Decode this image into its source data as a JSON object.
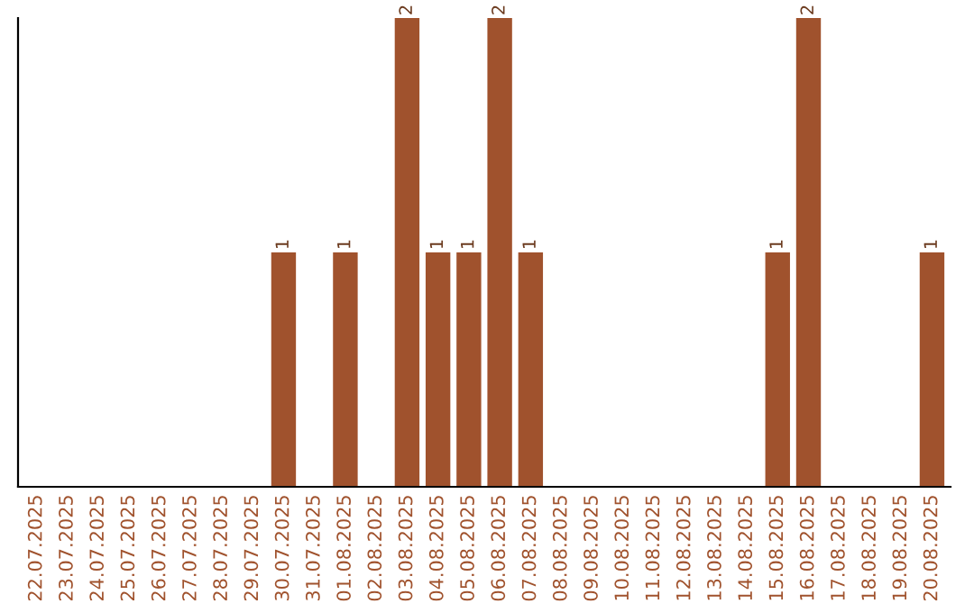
{
  "chart_data": {
    "type": "bar",
    "categories": [
      "22.07.2025",
      "23.07.2025",
      "24.07.2025",
      "25.07.2025",
      "26.07.2025",
      "27.07.2025",
      "28.07.2025",
      "29.07.2025",
      "30.07.2025",
      "31.07.2025",
      "01.08.2025",
      "02.08.2025",
      "03.08.2025",
      "04.08.2025",
      "05.08.2025",
      "06.08.2025",
      "07.08.2025",
      "08.08.2025",
      "09.08.2025",
      "10.08.2025",
      "11.08.2025",
      "12.08.2025",
      "13.08.2025",
      "14.08.2025",
      "15.08.2025",
      "16.08.2025",
      "17.08.2025",
      "18.08.2025",
      "19.08.2025",
      "20.08.2025"
    ],
    "values": [
      0,
      0,
      0,
      0,
      0,
      0,
      0,
      0,
      1,
      0,
      1,
      0,
      2,
      1,
      1,
      2,
      1,
      0,
      0,
      0,
      0,
      0,
      0,
      0,
      1,
      2,
      0,
      0,
      0,
      1
    ],
    "value_labels": [
      null,
      null,
      null,
      null,
      null,
      null,
      null,
      null,
      "1",
      null,
      "1",
      null,
      "2",
      "1",
      "1",
      "2",
      "1",
      null,
      null,
      null,
      null,
      null,
      null,
      null,
      "1",
      "2",
      null,
      null,
      null,
      "1"
    ],
    "color": "#a0522d",
    "ylim": [
      0,
      2
    ],
    "tick_labels": "x",
    "grid": false,
    "legend": false
  }
}
